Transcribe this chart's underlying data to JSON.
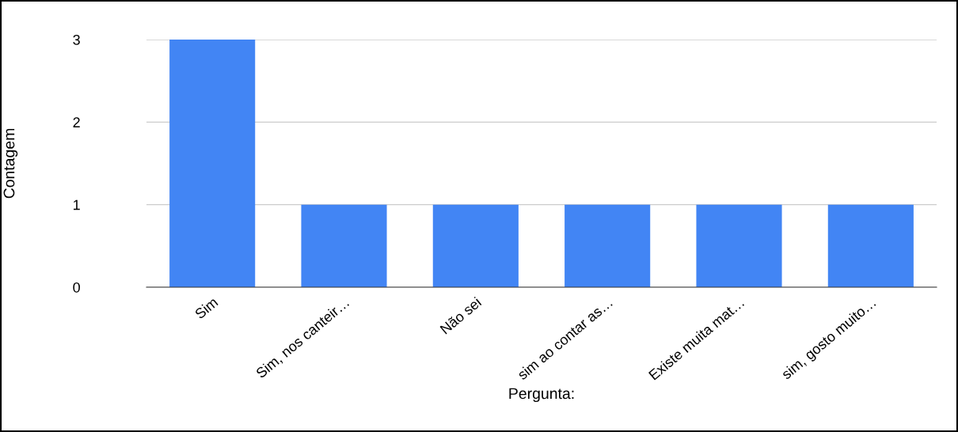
{
  "chart_data": {
    "type": "bar",
    "xlabel": "Pergunta:",
    "ylabel": "Contagem",
    "categories": [
      "Sim",
      "Sim, nos canteir…",
      "Não sei",
      "sim ao contar as…",
      "Existe muita mat…",
      "sim, gosto muito…"
    ],
    "values": [
      3,
      1,
      1,
      1,
      1,
      1
    ],
    "color": "#4285f4",
    "ylim": [
      0,
      3
    ],
    "yticks": [
      0,
      1,
      2,
      3
    ],
    "grid": "y",
    "legend": false
  }
}
